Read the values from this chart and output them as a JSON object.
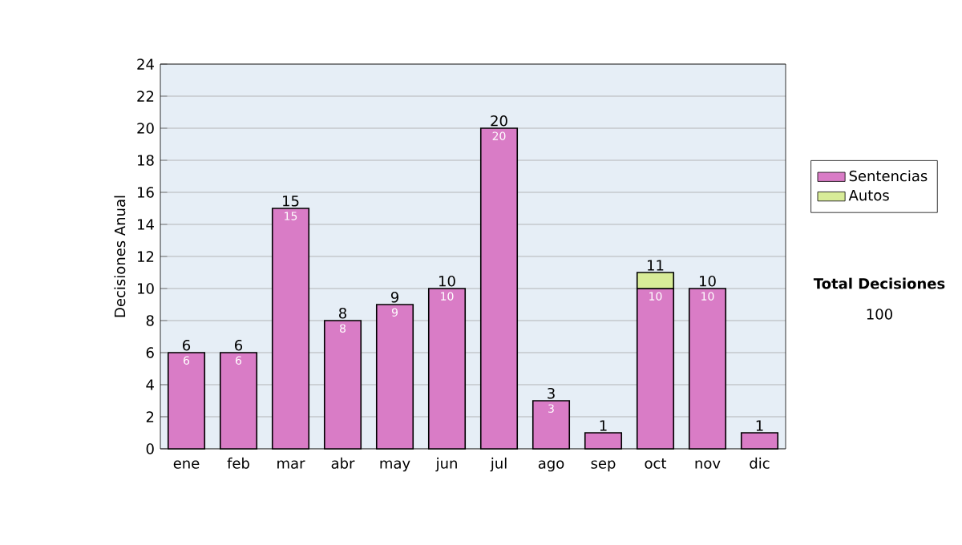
{
  "chart_data": {
    "type": "bar",
    "stacked": true,
    "ylabel": "Decisiones Anual",
    "categories": [
      "ene",
      "feb",
      "mar",
      "abr",
      "may",
      "jun",
      "jul",
      "ago",
      "sep",
      "oct",
      "nov",
      "dic"
    ],
    "series": [
      {
        "name": "Sentencias",
        "color": "#d97cc6",
        "values": [
          6,
          6,
          15,
          8,
          9,
          10,
          20,
          3,
          1,
          10,
          10,
          1
        ],
        "value_labels": [
          "6",
          "6",
          "15",
          "8",
          "9",
          "10",
          "20",
          "3",
          null,
          "10",
          "10",
          null
        ]
      },
      {
        "name": "Autos",
        "color": "#d8ec98",
        "values": [
          null,
          null,
          null,
          null,
          null,
          null,
          null,
          null,
          null,
          1,
          null,
          null
        ]
      }
    ],
    "totals": [
      "6",
      "6",
      "15",
      "8",
      "9",
      "10",
      "20",
      "3",
      "1",
      "11",
      "10",
      "1"
    ],
    "ylim": [
      0,
      24
    ],
    "yticks": [
      0,
      2,
      4,
      6,
      8,
      10,
      12,
      14,
      16,
      18,
      20,
      22,
      24
    ],
    "grid": "y",
    "legend": "right",
    "annotations": [
      "Total Decisiones",
      "100"
    ]
  }
}
